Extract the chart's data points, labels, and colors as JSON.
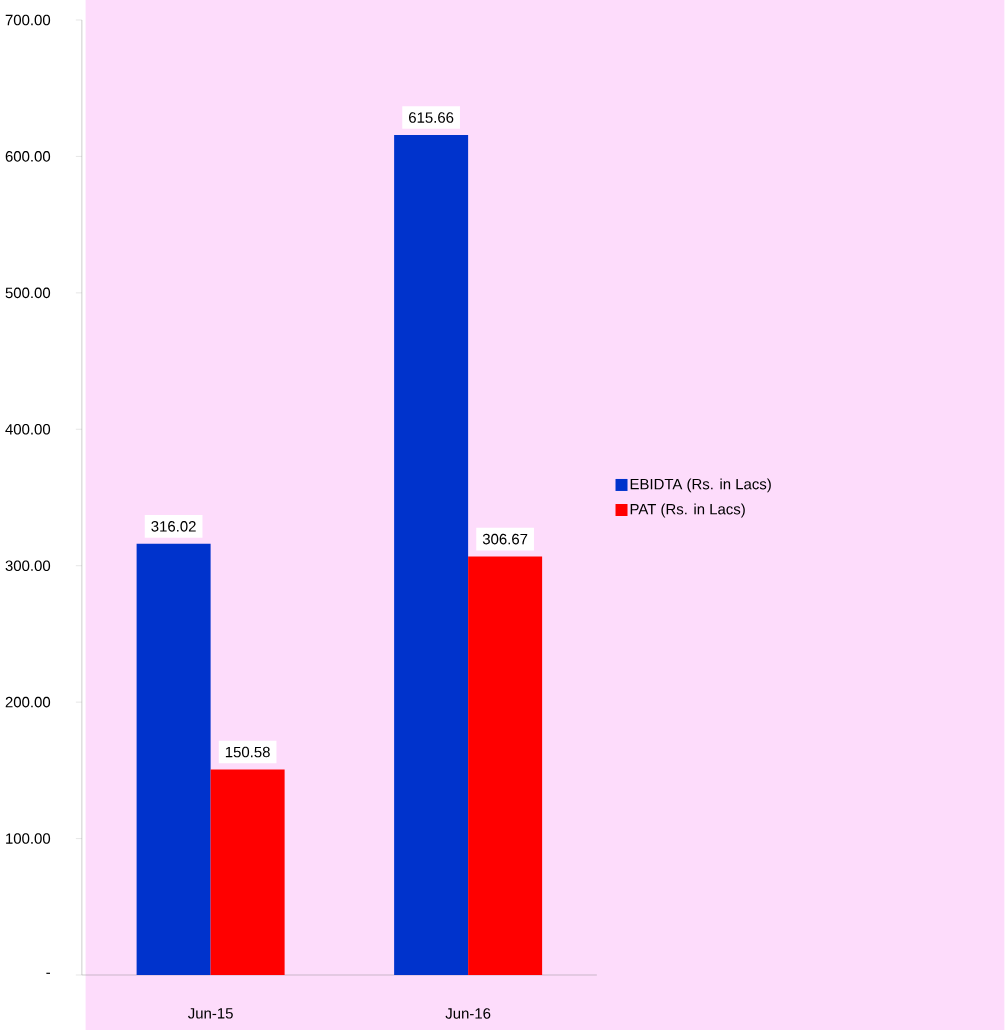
{
  "chart_data": {
    "type": "bar",
    "categories": [
      "Jun-15",
      "Jun-16"
    ],
    "series": [
      {
        "name": "EBIDTA (Rs. in Lacs)",
        "color": "#0033cc",
        "values": [
          316.02,
          615.66
        ]
      },
      {
        "name": "PAT (Rs. in Lacs)",
        "color": "#ff0000",
        "values": [
          150.58,
          306.67
        ]
      }
    ],
    "ylim": [
      0,
      700
    ],
    "yticks": [
      {
        "value": 0,
        "label": "-"
      },
      {
        "value": 100,
        "label": "100.00"
      },
      {
        "value": 200,
        "label": "200.00"
      },
      {
        "value": 300,
        "label": "300.00"
      },
      {
        "value": 400,
        "label": "400.00"
      },
      {
        "value": 500,
        "label": "500.00"
      },
      {
        "value": 600,
        "label": "600.00"
      },
      {
        "value": 700,
        "label": "700.00"
      }
    ],
    "data_labels": true,
    "grid": false,
    "legend": "right"
  }
}
